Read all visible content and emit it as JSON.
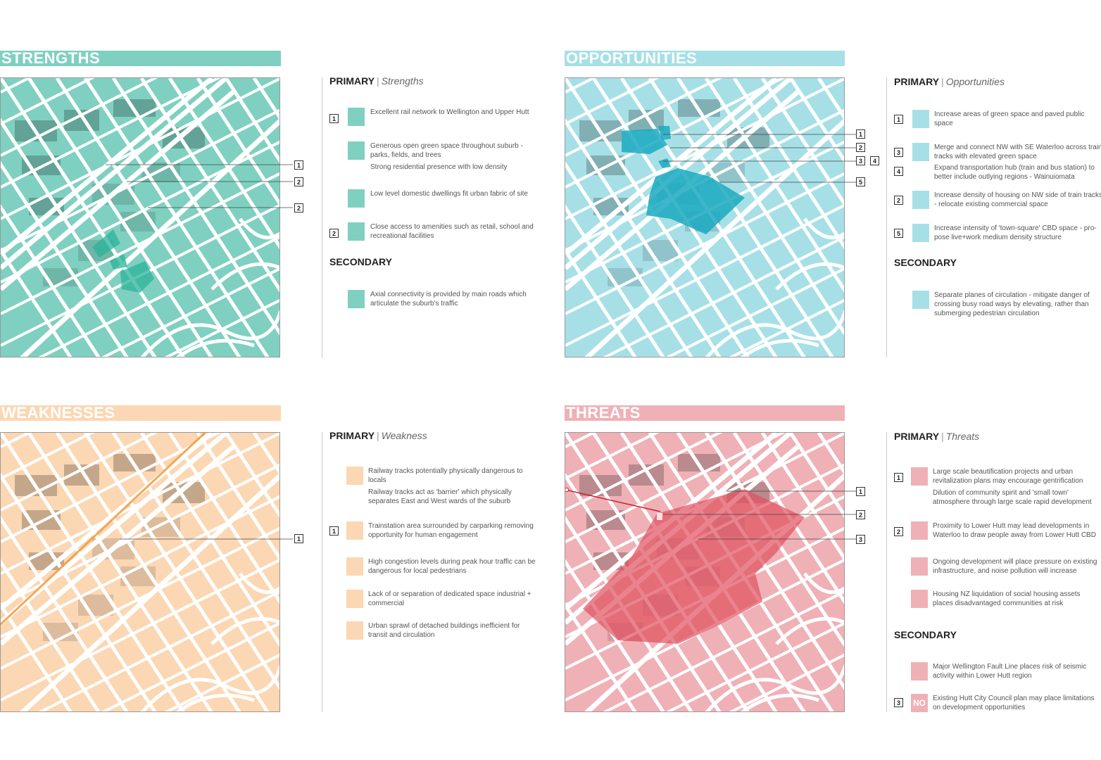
{
  "colors": {
    "strengths": "#7fd0c0",
    "opportunities": "#a6e0e6",
    "weaknesses": "#fbd7b3",
    "threats": "#efb1b6",
    "strengths_hl": "#2bb39a",
    "opportunities_hl": "#1aa9c0",
    "threats_hl": "#e0505e"
  },
  "strengths": {
    "title": "STRENGTHS",
    "primary_label": "PRIMARY",
    "primary_sub": "Strengths",
    "secondary_label": "SECONDARY",
    "map_labels": [
      "1",
      "2",
      "2"
    ],
    "items": [
      {
        "num": "1",
        "icon": "train-icon",
        "lines": [
          "Excellent rail network to Wellington and Upper Hutt"
        ]
      },
      {
        "num": "",
        "icon": "tree-icon",
        "lines": [
          "Generous open green space throughout suburb - parks, fields, and trees",
          "Strong residential presence with low density"
        ]
      },
      {
        "num": "",
        "icon": "house-icon",
        "lines": [
          "Low level domestic dwellings fit urban fabric of site"
        ]
      },
      {
        "num": "2",
        "icon": "building-icon",
        "lines": [
          "Close access to amenities such as retail, school and recreational facilities"
        ]
      }
    ],
    "secondary": [
      {
        "num": "",
        "icon": "axis-icon",
        "lines": [
          "Axial connectivity is provided by main roads which articulate the suburb's traffic"
        ]
      }
    ]
  },
  "opportunities": {
    "title": "OPPORTUNITIES",
    "primary_label": "PRIMARY",
    "primary_sub": "Opportunities",
    "secondary_label": "SECONDARY",
    "map_labels": [
      "1",
      "2",
      "3",
      "4",
      "5"
    ],
    "items": [
      {
        "num": "1",
        "icon": "tree-icon",
        "lines": [
          "Increase areas of green space and paved public space"
        ]
      },
      {
        "num": "3",
        "icon": "train-icon",
        "lines": [
          "Merge and connect NW with SE Waterloo across train tracks with elevated green space"
        ]
      },
      {
        "num": "4",
        "icon": "",
        "lines": [
          "Expand transportation hub (train and bus station) to better include outlying regions - Wainuiomata"
        ]
      },
      {
        "num": "2",
        "icon": "house-icon",
        "lines": [
          "Increase density of housing on NW side of train tracks - relocate existing commercial space"
        ]
      },
      {
        "num": "5",
        "icon": "building-icon",
        "lines": [
          "Increase intensity of 'town-square' CBD space - pro-pose live+work medium density structure"
        ]
      }
    ],
    "secondary": [
      {
        "num": "",
        "icon": "stairs-icon",
        "lines": [
          "Separate planes of circulation - mitigate danger of crossing busy road ways by elevating, rather than submerging pedestrian circulation"
        ]
      }
    ]
  },
  "weaknesses": {
    "title": "WEAKNESSES",
    "primary_label": "PRIMARY",
    "primary_sub": "Weakness",
    "map_labels": [
      "1"
    ],
    "items": [
      {
        "num": "",
        "icon": "train-icon",
        "lines": [
          "Railway tracks potentially physically dangerous to locals",
          "Railway tracks act as 'barrier' which physically separates East and West wards of the suburb"
        ]
      },
      {
        "num": "1",
        "icon": "parking-icon",
        "lines": [
          "Trainstation area surrounded by carparking removing opportunity for human engagement"
        ]
      },
      {
        "num": "",
        "icon": "congestion-icon",
        "lines": [
          "High congestion levels during peak hour traffic can be dangerous for local pedestrians"
        ]
      },
      {
        "num": "",
        "icon": "dollar-icon",
        "lines": [
          "Lack of or separation of dedicated space industrial + commercial"
        ]
      },
      {
        "num": "",
        "icon": "sprawl-icon",
        "lines": [
          "Urban sprawl of detached buildings inefficient for transit and circulation"
        ]
      }
    ]
  },
  "threats": {
    "title": "THREATS",
    "primary_label": "PRIMARY",
    "primary_sub": "Threats",
    "secondary_label": "SECONDARY",
    "map_labels": [
      "1",
      "2",
      "3"
    ],
    "items": [
      {
        "num": "1",
        "icon": "people-icon",
        "lines": [
          "Large scale beautification projects and urban revitalization plans may encourage gentrification",
          "Dilution of community spirit and 'small town' atmosphere through large scale rapid development"
        ]
      },
      {
        "num": "2",
        "icon": "arrows-icon",
        "lines": [
          "Proximity to Lower Hutt may lead developments in Waterloo to draw people away from Lower Hutt CBD"
        ]
      },
      {
        "num": "",
        "icon": "speaker-icon",
        "lines": [
          "Ongoing development will place pressure on existing infrastructure, and noise pollution will increase"
        ]
      },
      {
        "num": "",
        "icon": "dollar-icon",
        "lines": [
          "Housing NZ liquidation of social housing assets places disadvantaged communities at risk"
        ]
      }
    ],
    "secondary": [
      {
        "num": "",
        "icon": "fault-icon",
        "lines": [
          "Major Wellington Fault Line places risk of seismic activity within Lower Hutt region"
        ]
      },
      {
        "num": "3",
        "icon": "no-icon",
        "icon_text": "NO",
        "lines": [
          "Existing Hutt City Council plan may place limitations on development opportunities"
        ]
      }
    ]
  }
}
